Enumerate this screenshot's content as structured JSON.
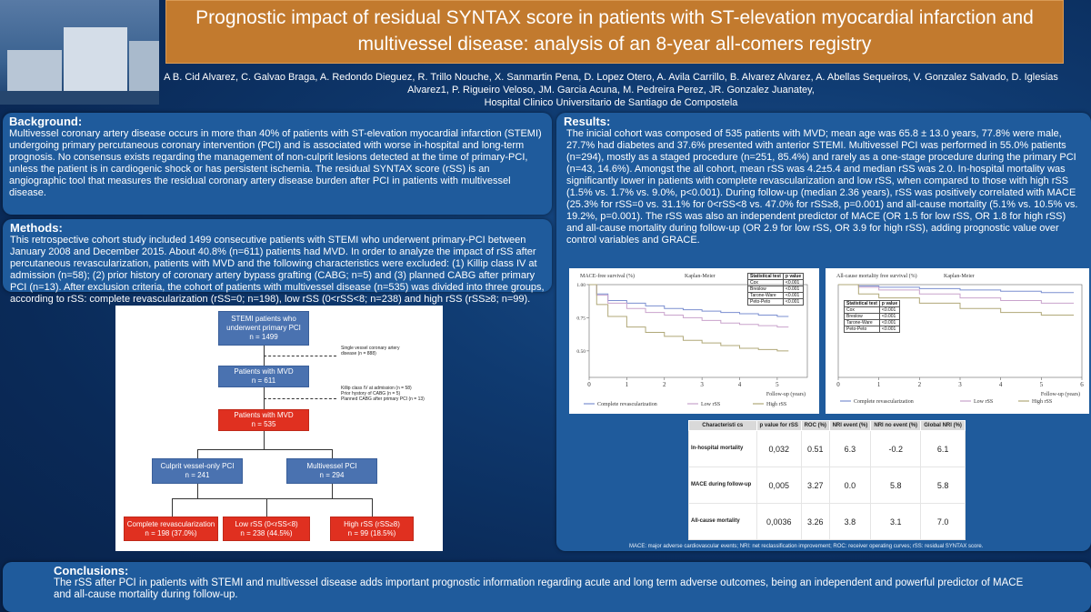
{
  "title": "Prognostic impact of residual SYNTAX score in patients with ST-elevation myocardial infarction and multivessel disease: analysis of an 8-year all-comers registry",
  "authors": "A B. Cid Alvarez, C. Galvao Braga, A. Redondo Dieguez, R. Trillo Nouche, X. Sanmartin Pena, D. Lopez Otero, A. Avila Carrillo, B. Alvarez Alvarez, A. Abellas Sequeiros, V. Gonzalez Salvado, D. Iglesias Alvarez1, P. Rigueiro Veloso, JM. Garcia Acuna, M. Pedreira Perez, JR. Gonzalez Juanatey,",
  "affiliation": "Hospital Clinico Universitario de Santiago de Compostela",
  "background": {
    "heading": "Background:",
    "text": "Multivessel coronary artery disease occurs in more than 40% of patients with ST-elevation myocardial infarction (STEMI) undergoing primary percutaneous coronary intervention (PCI) and is associated with worse in-hospital and long-term prognosis. No consensus exists regarding the management of non-culprit lesions detected at the time of primary-PCI, unless the patient is in cardiogenic shock or has persistent ischemia. The residual SYNTAX score (rSS) is an angiographic tool that measures the residual coronary artery disease burden after PCI in patients with multivessel disease."
  },
  "methods": {
    "heading": "Methods:",
    "text": "This retrospective cohort study included 1499 consecutive patients with STEMI who underwent primary-PCI between January 2008 and December 2015. About 40.8% (n=611) patients had MVD. In order to analyze the impact of rSS after percutaneous revascularization, patients with MVD and the following characteristics were excluded: (1) Killip class IV at admission (n=58); (2) prior history of coronary artery bypass grafting (CABG; n=5) and (3) planned CABG after primary PCI (n=13). After exclusion criteria, the cohort of patients with multivessel disease (n=535) was divided into three groups, according to rSS: complete revascularization (rSS=0; n=198), low rSS (0<rSS<8; n=238) and high rSS (rSS≥8; n=99)."
  },
  "flowchart": {
    "stemi": "STEMI patients who underwent primary PCI",
    "stemi_n": "n = 1499",
    "note1": "Single vessel coronary artery disease (n = 888)",
    "mvd": "Patients with MVD",
    "mvd_n": "n = 611",
    "note2a": "Killip class IV at admission (n = 58)",
    "note2b": "Prior hystory of CABG (n = 5)",
    "note2c": "Planned CABG after primary PCI (n = 13)",
    "mvd2": "Patients with MVD",
    "mvd2_n": "n = 535",
    "culprit": "Culprit vessel-only PCI",
    "culprit_n": "n = 241",
    "multi": "Multivessel PCI",
    "multi_n": "n = 294",
    "complete": "Complete revascularization",
    "complete_n": "n = 198 (37.0%)",
    "low": "Low rSS (0<rSS<8)",
    "low_n": "n = 238 (44.5%)",
    "high": "High rSS (rSS≥8)",
    "high_n": "n = 99 (18.5%)"
  },
  "results": {
    "heading": "Results:",
    "text": "The inicial cohort was composed of 535 patients with MVD; mean age was 65.8 ± 13.0 years, 77.8% were male, 27.7% had diabetes and 37.6% presented with anterior STEMI. Multivessel PCI was performed in 55.0% patients (n=294), mostly as a staged procedure (n=251, 85.4%) and rarely as a one-stage procedure during the primary PCI (n=43, 14.6%). Amongst the all cohort, mean rSS was 4.2±5.4 and median rSS was 2.0. In-hospital mortality was significantly lower in patients with complete revascularization and low rSS, when compared to those with high rSS (1.5% vs. 1.7% vs. 9.0%, p<0.001). During follow-up (median 2.36 years), rSS was positively correlated with MACE (25.3% for rSS=0 vs. 31.1% for 0<rSS<8 vs. 47.0% for rSS≥8, p=0.001) and all-cause mortality (5.1% vs. 10.5% vs. 19.2%, p=0.001). The rSS was also an independent predictor of MACE (OR 1.5 for low rSS, OR 1.8 for high rSS) and all-cause mortality during follow-up (OR 2.9 for low rSS, OR 3.9 for high rSS), adding prognostic value over control variables and GRACE."
  },
  "chart_data": [
    {
      "type": "line",
      "title": "MACE-free survival (%)",
      "subtitle": "Kaplan-Meier",
      "xlabel": "Follow-up (years)",
      "ylabel": "",
      "xlim": [
        0,
        5.8
      ],
      "ylim": [
        0.3,
        1.0
      ],
      "xticks": [
        "0",
        "1",
        "2",
        "3",
        "4",
        "5"
      ],
      "yticks": [
        "1.00",
        "0.75",
        "0.50"
      ],
      "stat_table": {
        "headers": [
          "Statistical test",
          "p value"
        ],
        "rows": [
          [
            "Cox",
            "<0.001"
          ],
          [
            "Breslow",
            "<0.001"
          ],
          [
            "Tarone-Ware",
            "<0.001"
          ],
          [
            "Peto-Peto",
            "<0.001"
          ]
        ]
      },
      "series": [
        {
          "name": "Complete revascularization",
          "color": "#7b8fd0",
          "x": [
            0,
            0.2,
            0.5,
            1,
            1.5,
            2,
            2.5,
            3,
            3.5,
            4,
            4.5,
            5,
            5.3
          ],
          "y": [
            1.0,
            0.93,
            0.88,
            0.86,
            0.84,
            0.82,
            0.81,
            0.8,
            0.79,
            0.78,
            0.77,
            0.76,
            0.76
          ]
        },
        {
          "name": "Low rSS",
          "color": "#c9a3cc",
          "x": [
            0,
            0.2,
            0.5,
            1,
            1.5,
            2,
            2.5,
            3,
            3.5,
            4,
            4.5,
            5,
            5.3
          ],
          "y": [
            1.0,
            0.92,
            0.86,
            0.82,
            0.79,
            0.77,
            0.75,
            0.73,
            0.71,
            0.7,
            0.69,
            0.68,
            0.68
          ]
        },
        {
          "name": "High rSS",
          "color": "#b0a878",
          "x": [
            0,
            0.2,
            0.5,
            1,
            1.5,
            2,
            2.5,
            3,
            3.5,
            4,
            4.5,
            5,
            5.3
          ],
          "y": [
            1.0,
            0.85,
            0.76,
            0.68,
            0.64,
            0.61,
            0.58,
            0.56,
            0.54,
            0.52,
            0.51,
            0.5,
            0.5
          ]
        }
      ]
    },
    {
      "type": "line",
      "title": "All-cause mortality free survival (%)",
      "subtitle": "Kaplan-Meier",
      "xlabel": "Follow-up (years)",
      "ylabel": "",
      "xlim": [
        0,
        6
      ],
      "ylim": [
        0.3,
        1.0
      ],
      "xticks": [
        "0",
        "1",
        "2",
        "3",
        "4",
        "5",
        "6"
      ],
      "yticks": [],
      "stat_table": {
        "headers": [
          "Statistical test",
          "p value"
        ],
        "rows": [
          [
            "Cox",
            "<0.001"
          ],
          [
            "Breslow",
            "<0.001"
          ],
          [
            "Tarone-Ware",
            "<0.001"
          ],
          [
            "Peto-Peto",
            "<0.001"
          ]
        ]
      },
      "series": [
        {
          "name": "Complete revascularization",
          "color": "#7b8fd0",
          "x": [
            0,
            0.5,
            1,
            2,
            3,
            4,
            5,
            5.8
          ],
          "y": [
            1.0,
            0.99,
            0.98,
            0.97,
            0.96,
            0.95,
            0.94,
            0.94
          ]
        },
        {
          "name": "Low rSS",
          "color": "#c9a3cc",
          "x": [
            0,
            0.5,
            1,
            2,
            3,
            4,
            5,
            5.8
          ],
          "y": [
            1.0,
            0.98,
            0.96,
            0.93,
            0.9,
            0.88,
            0.86,
            0.86
          ]
        },
        {
          "name": "High rSS",
          "color": "#b0a878",
          "x": [
            0,
            0.5,
            1,
            2,
            3,
            4,
            5,
            5.8
          ],
          "y": [
            1.0,
            0.93,
            0.9,
            0.86,
            0.82,
            0.79,
            0.77,
            0.77
          ]
        }
      ]
    }
  ],
  "table": {
    "headers": [
      "Characteristi cs",
      "p value for rSS",
      "ROC (%)",
      "NRI event (%)",
      "NRI no event (%)",
      "Global NRI (%)"
    ],
    "rows": [
      [
        "In-hospital mortality",
        "0,032",
        "0.51",
        "6.3",
        "-0.2",
        "6.1"
      ],
      [
        "MACE during follow-up",
        "0,005",
        "3.27",
        "0.0",
        "5.8",
        "5.8"
      ],
      [
        "All-cause mortality",
        "0,0036",
        "3.26",
        "3.8",
        "3.1",
        "7.0"
      ]
    ],
    "note": "MACE: major adverse cardiovascular events; NRI: net reclassification improvement; ROC: receiver operating curves; rSS: residual SYNTAX score."
  },
  "conclusions": {
    "heading": "Conclusions:",
    "text": "The rSS after PCI in patients with STEMI and multivessel disease adds important prognostic information regarding acute and long term adverse outcomes, being an independent and powerful predictor of MACE and all-cause mortality during follow-up."
  }
}
